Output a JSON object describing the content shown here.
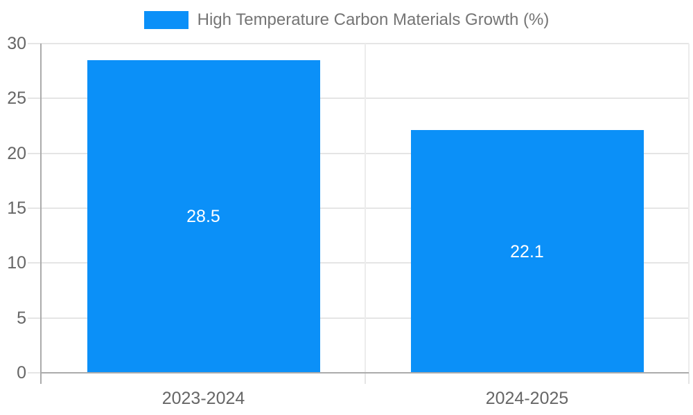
{
  "chart_data": {
    "type": "bar",
    "title": "High Temperature Carbon Materials Growth (%)",
    "legend": {
      "label": "High Temperature Carbon Materials Growth (%)",
      "position": "top"
    },
    "categories": [
      "2023-2024",
      "2024-2025"
    ],
    "series": [
      {
        "name": "High Temperature Carbon Materials Growth (%)",
        "values": [
          28.5,
          22.1
        ]
      }
    ],
    "value_labels": [
      "28.5",
      "22.1"
    ],
    "xlabel": "",
    "ylabel": "",
    "ylim": [
      0,
      30
    ],
    "yticks": [
      0,
      5,
      10,
      15,
      20,
      25,
      30
    ],
    "grid": true,
    "colors": {
      "bar": "#0b90f8",
      "value_label": "#ffffff",
      "axis_text": "#666666",
      "legend_text": "#757575",
      "gridline": "#e5e5e5",
      "vertical_gridline": "#ececec",
      "axis_line": "#ababab"
    }
  }
}
